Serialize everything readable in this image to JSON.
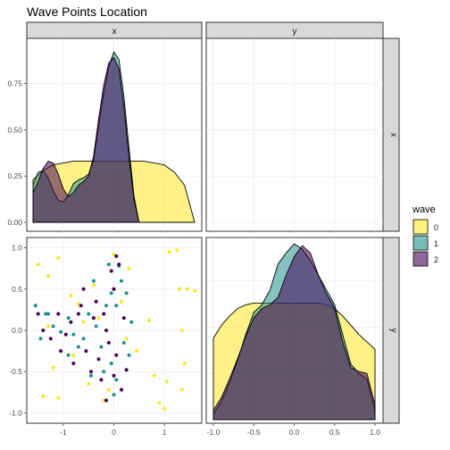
{
  "title": "Wave Points Location",
  "facets": {
    "col": [
      "x",
      "y"
    ],
    "row": [
      "x",
      "y"
    ]
  },
  "legend": {
    "title": "wave",
    "placement": "right",
    "items": [
      {
        "label": "0",
        "color": "#FDE725"
      },
      {
        "label": "1",
        "color": "#21908C"
      },
      {
        "label": "2",
        "color": "#440154"
      }
    ]
  },
  "chart_data": [
    {
      "type": "area",
      "panel": "x-x density",
      "x_range": [
        -1.6,
        1.6
      ],
      "ylim": [
        0,
        0.95
      ],
      "y_ticks": [
        "0.00",
        "0.25",
        "0.50",
        "0.75"
      ],
      "y_tick_values": [
        0,
        0.25,
        0.5,
        0.75
      ],
      "series": [
        {
          "name": "0",
          "x": [
            -1.6,
            -1.4,
            -1.2,
            -1.0,
            -0.8,
            -0.6,
            -0.4,
            -0.2,
            0.0,
            0.2,
            0.4,
            0.6,
            0.8,
            1.0,
            1.2,
            1.4,
            1.6
          ],
          "y": [
            0.23,
            0.28,
            0.31,
            0.32,
            0.33,
            0.33,
            0.33,
            0.33,
            0.33,
            0.33,
            0.33,
            0.33,
            0.32,
            0.31,
            0.27,
            0.2,
            0.0
          ]
        },
        {
          "name": "1",
          "x": [
            -1.6,
            -1.5,
            -1.4,
            -1.3,
            -1.2,
            -1.1,
            -1.0,
            -0.9,
            -0.8,
            -0.7,
            -0.6,
            -0.5,
            -0.4,
            -0.3,
            -0.2,
            -0.1,
            0.0,
            0.1,
            0.2,
            0.3,
            0.4,
            0.5
          ],
          "y": [
            0.2,
            0.27,
            0.28,
            0.24,
            0.17,
            0.12,
            0.11,
            0.15,
            0.21,
            0.23,
            0.24,
            0.26,
            0.34,
            0.52,
            0.7,
            0.84,
            0.92,
            0.88,
            0.68,
            0.4,
            0.14,
            0.0
          ]
        },
        {
          "name": "2",
          "x": [
            -1.6,
            -1.5,
            -1.4,
            -1.3,
            -1.2,
            -1.1,
            -1.0,
            -0.9,
            -0.8,
            -0.7,
            -0.6,
            -0.5,
            -0.4,
            -0.3,
            -0.2,
            -0.1,
            0.0,
            0.1,
            0.2,
            0.3,
            0.4,
            0.5
          ],
          "y": [
            0.16,
            0.22,
            0.29,
            0.33,
            0.32,
            0.26,
            0.18,
            0.14,
            0.16,
            0.2,
            0.22,
            0.25,
            0.36,
            0.56,
            0.74,
            0.86,
            0.89,
            0.83,
            0.62,
            0.35,
            0.12,
            0.0
          ]
        }
      ]
    },
    {
      "type": "scatter",
      "panel": "x vs y",
      "x_ticks": [
        "-1",
        "0",
        "1"
      ],
      "x_tick_values": [
        -1,
        0,
        1
      ],
      "y_ticks": [
        "1.0",
        "0.5",
        "0.0",
        "-0.5",
        "-1.0"
      ],
      "y_tick_values": [
        1.0,
        0.5,
        0.0,
        -0.5,
        -1.0
      ],
      "x_range": [
        -1.6,
        1.6
      ],
      "ylim": [
        -1.05,
        1.05
      ],
      "series": [
        {
          "name": "0",
          "points": [
            [
              -1.5,
              0.8
            ],
            [
              -1.1,
              0.88
            ],
            [
              -1.3,
              0.66
            ],
            [
              1.1,
              0.95
            ],
            [
              1.25,
              0.97
            ],
            [
              1.45,
              0.5
            ],
            [
              1.6,
              0.48
            ],
            [
              -0.4,
              0.55
            ],
            [
              -0.3,
              0.15
            ],
            [
              -0.6,
              0.1
            ],
            [
              -1.45,
              -0.1
            ],
            [
              -1.2,
              -0.45
            ],
            [
              -0.8,
              -0.3
            ],
            [
              -0.5,
              -0.65
            ],
            [
              0.45,
              -0.25
            ],
            [
              0.8,
              -0.55
            ],
            [
              1.4,
              -0.4
            ],
            [
              1.35,
              -0.72
            ],
            [
              1.3,
              0.5
            ],
            [
              0.3,
              0.75
            ],
            [
              0.7,
              0.12
            ],
            [
              -1.4,
              -0.8
            ],
            [
              -1.1,
              -0.82
            ],
            [
              -0.2,
              -0.85
            ],
            [
              0.9,
              -0.88
            ],
            [
              1.0,
              -0.95
            ],
            [
              -0.7,
              0.32
            ],
            [
              1.35,
              0.0
            ],
            [
              0.0,
              0.92
            ],
            [
              0.15,
              0.35
            ],
            [
              -0.1,
              -0.72
            ],
            [
              -0.85,
              0.42
            ],
            [
              1.05,
              -0.62
            ],
            [
              -1.3,
              0.05
            ],
            [
              0.25,
              -0.1
            ]
          ]
        },
        {
          "name": "1",
          "points": [
            [
              -1.55,
              0.3
            ],
            [
              -1.45,
              -0.1
            ],
            [
              -1.35,
              0.2
            ],
            [
              -1.2,
              0.05
            ],
            [
              -1.05,
              -0.02
            ],
            [
              -0.9,
              0.15
            ],
            [
              -0.8,
              -0.05
            ],
            [
              -0.6,
              -0.1
            ],
            [
              -0.5,
              0.2
            ],
            [
              -0.35,
              0.05
            ],
            [
              -0.25,
              -0.2
            ],
            [
              -0.15,
              0.3
            ],
            [
              -0.05,
              0.45
            ],
            [
              0.05,
              0.3
            ],
            [
              0.15,
              0.6
            ],
            [
              0.25,
              0.45
            ],
            [
              0.3,
              -0.3
            ],
            [
              0.35,
              0.1
            ],
            [
              -0.2,
              -0.5
            ],
            [
              0.05,
              -0.6
            ],
            [
              -0.4,
              0.6
            ],
            [
              -0.7,
              -0.2
            ],
            [
              0.0,
              -0.78
            ],
            [
              -0.1,
              0.8
            ],
            [
              0.1,
              0.78
            ],
            [
              -0.05,
              -0.4
            ],
            [
              -0.45,
              -0.55
            ],
            [
              0.2,
              -0.15
            ],
            [
              -0.9,
              -0.3
            ],
            [
              -1.3,
              0.2
            ]
          ]
        },
        {
          "name": "2",
          "points": [
            [
              -1.5,
              0.2
            ],
            [
              -1.4,
              0.0
            ],
            [
              -1.25,
              -0.1
            ],
            [
              -1.1,
              0.2
            ],
            [
              -0.95,
              -0.05
            ],
            [
              -0.85,
              0.1
            ],
            [
              -0.7,
              0.2
            ],
            [
              -0.6,
              0.5
            ],
            [
              -0.55,
              -0.25
            ],
            [
              -0.4,
              0.15
            ],
            [
              -0.3,
              -0.35
            ],
            [
              -0.2,
              0.2
            ],
            [
              -0.15,
              0.0
            ],
            [
              -0.1,
              -0.15
            ],
            [
              0.0,
              0.5
            ],
            [
              0.05,
              0.9
            ],
            [
              0.1,
              0.8
            ],
            [
              0.2,
              0.15
            ],
            [
              -0.05,
              0.72
            ],
            [
              -0.25,
              -0.6
            ],
            [
              -0.45,
              -0.5
            ],
            [
              0.0,
              -0.55
            ],
            [
              0.05,
              -0.3
            ],
            [
              -0.35,
              0.35
            ],
            [
              -0.65,
              0.3
            ],
            [
              -1.05,
              -0.25
            ],
            [
              -0.8,
              -0.4
            ],
            [
              0.15,
              -0.72
            ],
            [
              -0.15,
              -0.85
            ],
            [
              0.25,
              -0.48
            ]
          ]
        }
      ]
    },
    {
      "type": "area",
      "panel": "y-y density",
      "x_ticks": [
        "-1.0",
        "-0.5",
        "0.0",
        "0.5",
        "1.0"
      ],
      "x_tick_values": [
        -1.0,
        -0.5,
        0.0,
        0.5,
        1.0
      ],
      "x_range": [
        -1.0,
        1.0
      ],
      "ylim": [
        0,
        0.95
      ],
      "series": [
        {
          "name": "0",
          "x": [
            -1.0,
            -0.9,
            -0.8,
            -0.7,
            -0.6,
            -0.5,
            -0.4,
            -0.3,
            -0.2,
            -0.1,
            0.0,
            0.1,
            0.2,
            0.3,
            0.4,
            0.5,
            0.6,
            0.7,
            0.8,
            0.9,
            1.0
          ],
          "y": [
            0.44,
            0.51,
            0.56,
            0.6,
            0.62,
            0.63,
            0.63,
            0.63,
            0.63,
            0.63,
            0.63,
            0.63,
            0.63,
            0.63,
            0.62,
            0.6,
            0.56,
            0.51,
            0.46,
            0.42,
            0.38
          ]
        },
        {
          "name": "1",
          "x": [
            -1.0,
            -0.9,
            -0.8,
            -0.7,
            -0.6,
            -0.5,
            -0.4,
            -0.3,
            -0.2,
            -0.1,
            0.0,
            0.1,
            0.2,
            0.3,
            0.4,
            0.5,
            0.6,
            0.7,
            0.8,
            0.9,
            1.0
          ],
          "y": [
            0.03,
            0.1,
            0.2,
            0.32,
            0.46,
            0.58,
            0.62,
            0.7,
            0.84,
            0.9,
            0.95,
            0.92,
            0.86,
            0.78,
            0.7,
            0.62,
            0.46,
            0.3,
            0.25,
            0.22,
            0.05
          ]
        },
        {
          "name": "2",
          "x": [
            -1.0,
            -0.9,
            -0.8,
            -0.7,
            -0.6,
            -0.5,
            -0.4,
            -0.3,
            -0.2,
            -0.1,
            0.0,
            0.1,
            0.2,
            0.3,
            0.4,
            0.5,
            0.6,
            0.7,
            0.8,
            0.9,
            1.0
          ],
          "y": [
            0.05,
            0.12,
            0.22,
            0.33,
            0.45,
            0.55,
            0.6,
            0.62,
            0.66,
            0.78,
            0.88,
            0.94,
            0.9,
            0.78,
            0.68,
            0.6,
            0.42,
            0.28,
            0.26,
            0.25,
            0.08
          ]
        }
      ]
    }
  ]
}
